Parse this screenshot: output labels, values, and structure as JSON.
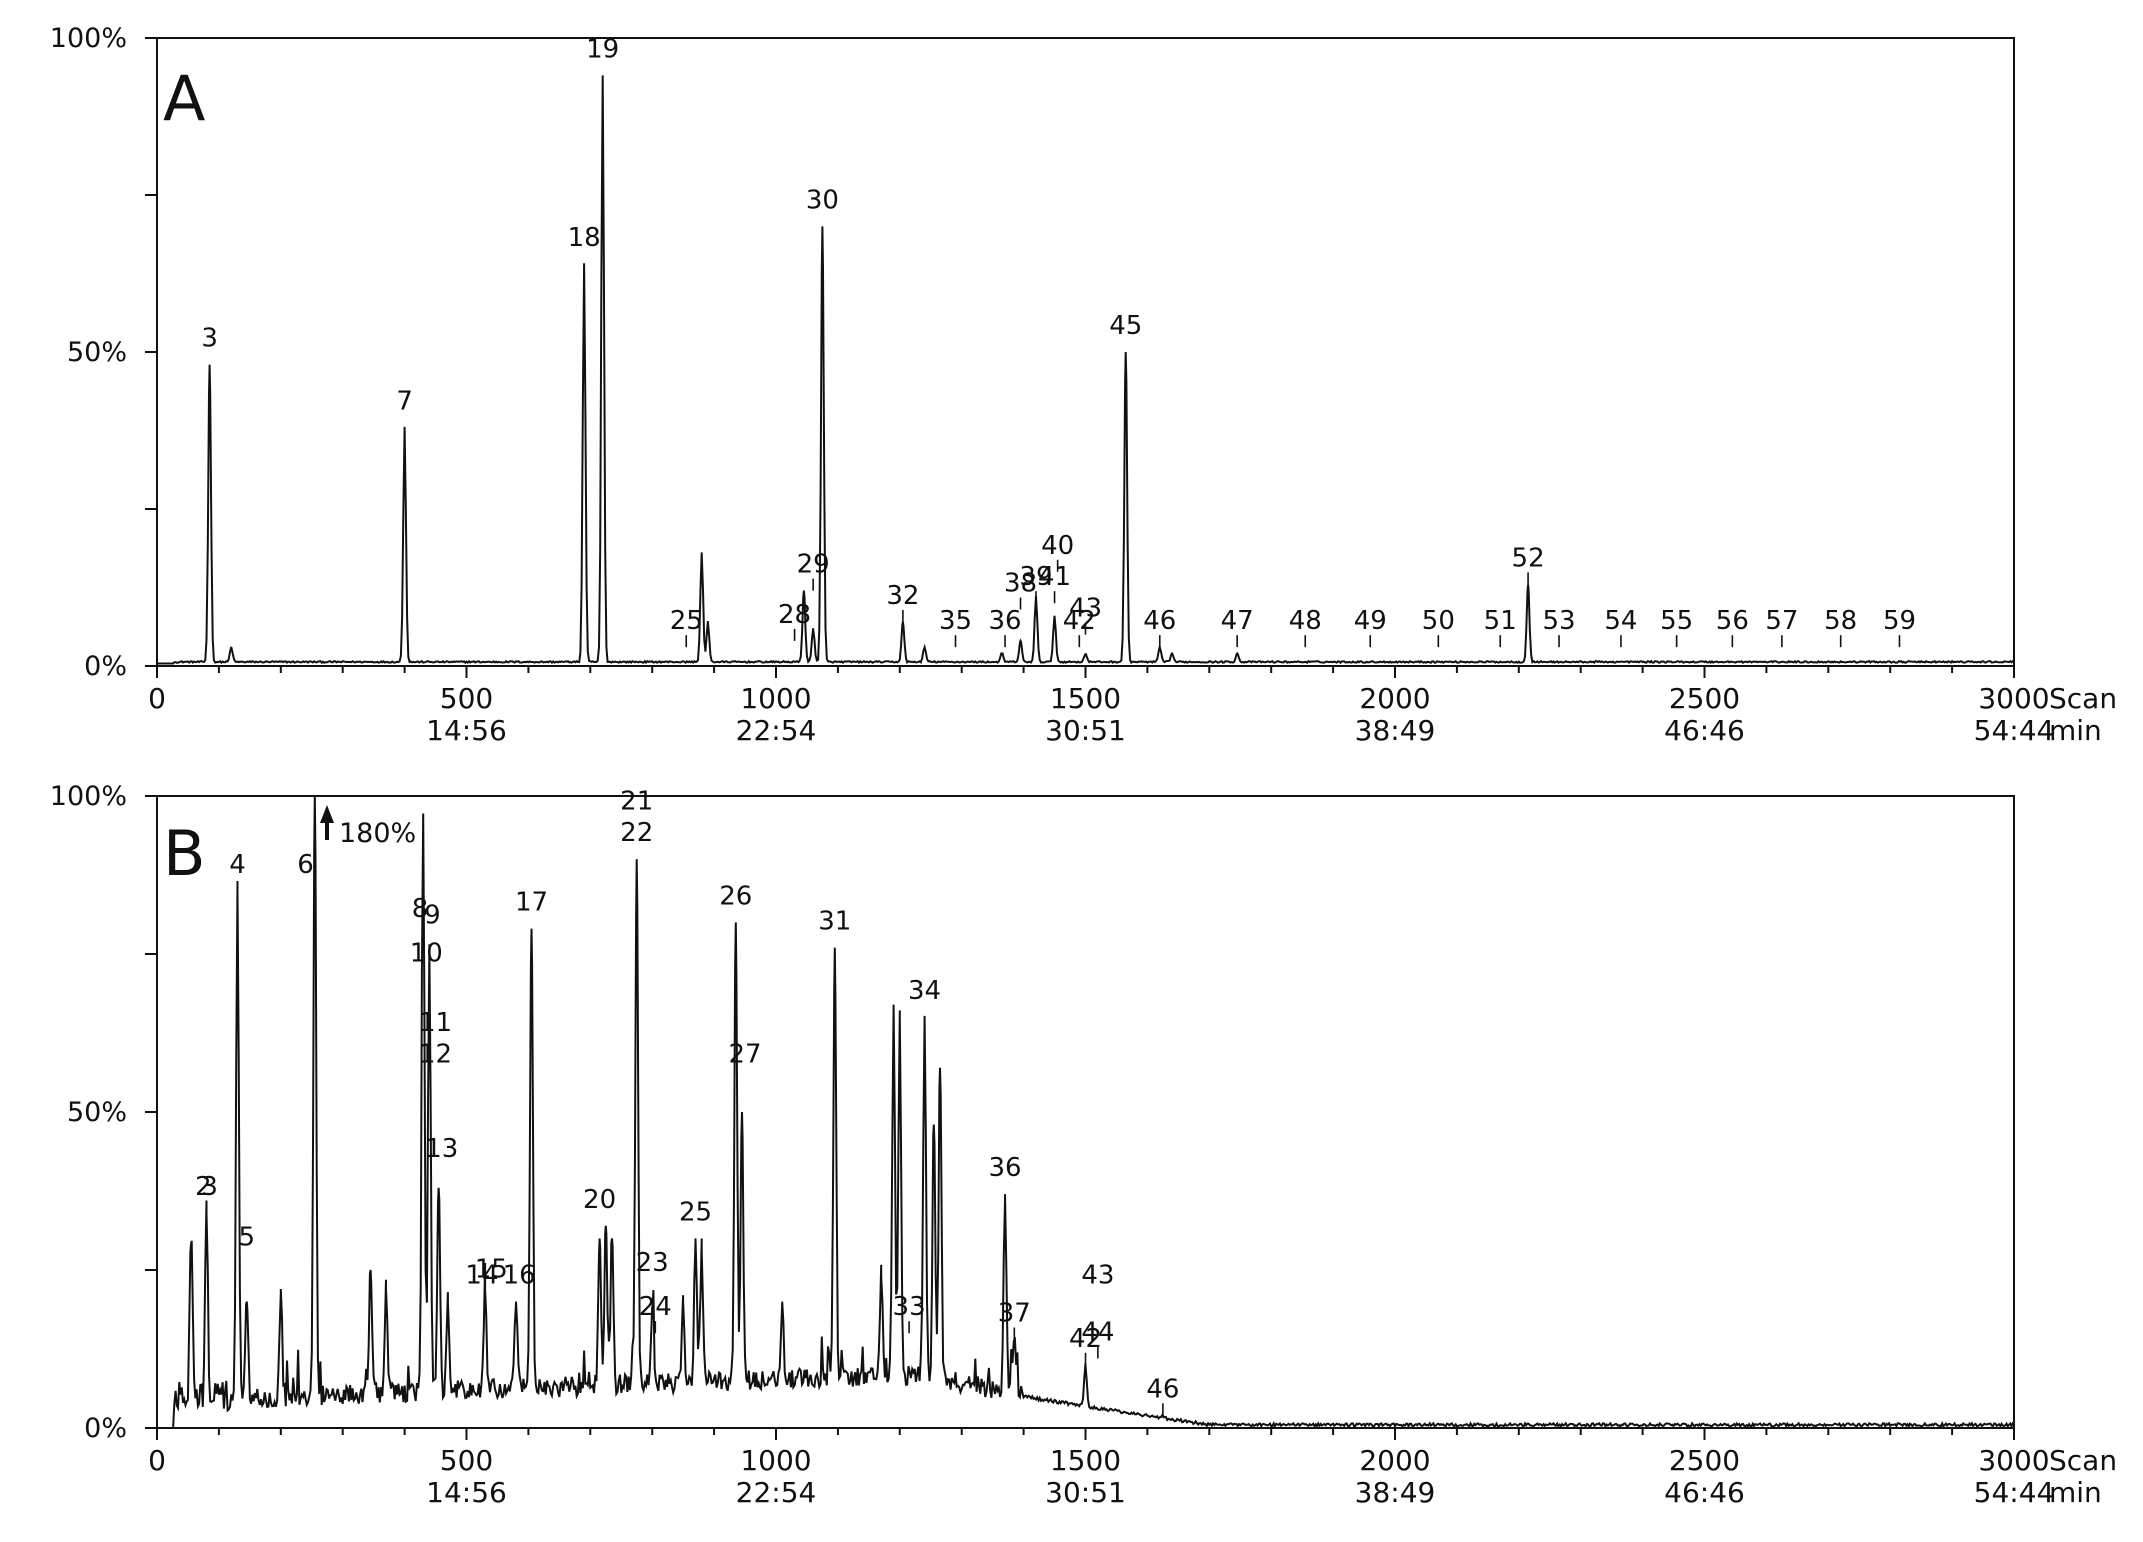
{
  "chart_data": [
    {
      "type": "line",
      "panel": "A",
      "x_unit": "Scan",
      "x2_unit": "min",
      "xlim": [
        0,
        3000
      ],
      "ylim": [
        0,
        100
      ],
      "x_ticks": [
        {
          "value": 0,
          "label": "0",
          "sub": ""
        },
        {
          "value": 500,
          "label": "500",
          "sub": "14:56"
        },
        {
          "value": 1000,
          "label": "1000",
          "sub": "22:54"
        },
        {
          "value": 1500,
          "label": "1500",
          "sub": "30:51"
        },
        {
          "value": 2000,
          "label": "2000",
          "sub": "38:49"
        },
        {
          "value": 2500,
          "label": "2500",
          "sub": "46:46"
        },
        {
          "value": 3000,
          "label": "3000",
          "sub": "54:44"
        }
      ],
      "y_ticks": [
        {
          "value": 0,
          "label": "0%"
        },
        {
          "value": 50,
          "label": "50%"
        },
        {
          "value": 100,
          "label": "100%"
        }
      ],
      "peaks": [
        {
          "x": 85,
          "y": 48
        },
        {
          "x": 120,
          "y": 3
        },
        {
          "x": 400,
          "y": 38
        },
        {
          "x": 690,
          "y": 64
        },
        {
          "x": 720,
          "y": 94
        },
        {
          "x": 880,
          "y": 18
        },
        {
          "x": 890,
          "y": 7
        },
        {
          "x": 1045,
          "y": 12
        },
        {
          "x": 1060,
          "y": 6
        },
        {
          "x": 1075,
          "y": 70
        },
        {
          "x": 1205,
          "y": 7
        },
        {
          "x": 1240,
          "y": 3
        },
        {
          "x": 1365,
          "y": 2
        },
        {
          "x": 1395,
          "y": 4
        },
        {
          "x": 1420,
          "y": 11
        },
        {
          "x": 1450,
          "y": 8
        },
        {
          "x": 1500,
          "y": 2
        },
        {
          "x": 1565,
          "y": 50
        },
        {
          "x": 1620,
          "y": 3
        },
        {
          "x": 1640,
          "y": 2
        },
        {
          "x": 1745,
          "y": 2
        },
        {
          "x": 2215,
          "y": 13
        }
      ],
      "labels": [
        {
          "text": "3",
          "x": 85,
          "y": 48
        },
        {
          "text": "7",
          "x": 400,
          "y": 38
        },
        {
          "text": "18",
          "x": 690,
          "y": 64
        },
        {
          "text": "19",
          "x": 720,
          "y": 94
        },
        {
          "text": "25",
          "x": 855,
          "y": 3
        },
        {
          "text": "28",
          "x": 1030,
          "y": 4
        },
        {
          "text": "29",
          "x": 1060,
          "y": 12
        },
        {
          "text": "30",
          "x": 1075,
          "y": 70
        },
        {
          "text": "32",
          "x": 1205,
          "y": 7
        },
        {
          "text": "35",
          "x": 1290,
          "y": 3
        },
        {
          "text": "36",
          "x": 1370,
          "y": 3
        },
        {
          "text": "38",
          "x": 1395,
          "y": 9
        },
        {
          "text": "39",
          "x": 1420,
          "y": 10
        },
        {
          "text": "40",
          "x": 1455,
          "y": 15
        },
        {
          "text": "41",
          "x": 1450,
          "y": 10
        },
        {
          "text": "42",
          "x": 1490,
          "y": 3
        },
        {
          "text": "43",
          "x": 1500,
          "y": 5
        },
        {
          "text": "45",
          "x": 1565,
          "y": 50
        },
        {
          "text": "46",
          "x": 1620,
          "y": 3
        },
        {
          "text": "47",
          "x": 1745,
          "y": 3
        },
        {
          "text": "48",
          "x": 1855,
          "y": 3
        },
        {
          "text": "49",
          "x": 1960,
          "y": 3
        },
        {
          "text": "50",
          "x": 2070,
          "y": 3
        },
        {
          "text": "51",
          "x": 2170,
          "y": 3
        },
        {
          "text": "52",
          "x": 2215,
          "y": 13
        },
        {
          "text": "53",
          "x": 2265,
          "y": 3
        },
        {
          "text": "54",
          "x": 2365,
          "y": 3
        },
        {
          "text": "55",
          "x": 2455,
          "y": 3
        },
        {
          "text": "56",
          "x": 2545,
          "y": 3
        },
        {
          "text": "57",
          "x": 2625,
          "y": 3
        },
        {
          "text": "58",
          "x": 2720,
          "y": 3
        },
        {
          "text": "59",
          "x": 2815,
          "y": 3
        }
      ]
    },
    {
      "type": "line",
      "panel": "B",
      "x_unit": "Scan",
      "x2_unit": "min",
      "xlim": [
        0,
        3000
      ],
      "ylim": [
        0,
        100
      ],
      "x_ticks": [
        {
          "value": 0,
          "label": "0",
          "sub": ""
        },
        {
          "value": 500,
          "label": "500",
          "sub": "14:56"
        },
        {
          "value": 1000,
          "label": "1000",
          "sub": "22:54"
        },
        {
          "value": 1500,
          "label": "1500",
          "sub": "30:51"
        },
        {
          "value": 2000,
          "label": "2000",
          "sub": "38:49"
        },
        {
          "value": 2500,
          "label": "2500",
          "sub": "46:46"
        },
        {
          "value": 3000,
          "label": "3000",
          "sub": "54:44"
        }
      ],
      "y_ticks": [
        {
          "value": 0,
          "label": "0%"
        },
        {
          "value": 50,
          "label": "50%"
        },
        {
          "value": 100,
          "label": "100%"
        }
      ],
      "off_scale_note": "180%",
      "peaks": [
        {
          "x": 55,
          "y": 29
        },
        {
          "x": 80,
          "y": 34
        },
        {
          "x": 130,
          "y": 85
        },
        {
          "x": 145,
          "y": 20
        },
        {
          "x": 200,
          "y": 22
        },
        {
          "x": 255,
          "y": 100
        },
        {
          "x": 345,
          "y": 25
        },
        {
          "x": 370,
          "y": 22
        },
        {
          "x": 430,
          "y": 97
        },
        {
          "x": 440,
          "y": 75
        },
        {
          "x": 455,
          "y": 38
        },
        {
          "x": 470,
          "y": 20
        },
        {
          "x": 530,
          "y": 22
        },
        {
          "x": 580,
          "y": 20
        },
        {
          "x": 605,
          "y": 79
        },
        {
          "x": 715,
          "y": 30
        },
        {
          "x": 725,
          "y": 32
        },
        {
          "x": 735,
          "y": 30
        },
        {
          "x": 775,
          "y": 90
        },
        {
          "x": 800,
          "y": 18
        },
        {
          "x": 850,
          "y": 20
        },
        {
          "x": 870,
          "y": 30
        },
        {
          "x": 880,
          "y": 28
        },
        {
          "x": 935,
          "y": 80
        },
        {
          "x": 945,
          "y": 50
        },
        {
          "x": 1010,
          "y": 20
        },
        {
          "x": 1095,
          "y": 76
        },
        {
          "x": 1170,
          "y": 24
        },
        {
          "x": 1190,
          "y": 67
        },
        {
          "x": 1200,
          "y": 65
        },
        {
          "x": 1240,
          "y": 65
        },
        {
          "x": 1255,
          "y": 48
        },
        {
          "x": 1265,
          "y": 57
        },
        {
          "x": 1370,
          "y": 37
        },
        {
          "x": 1385,
          "y": 14
        },
        {
          "x": 1500,
          "y": 10
        },
        {
          "x": 1625,
          "y": 2
        }
      ],
      "labels": [
        {
          "text": "2",
          "x": 75,
          "y": 34
        },
        {
          "text": "3",
          "x": 85,
          "y": 34
        },
        {
          "text": "4",
          "x": 130,
          "y": 85
        },
        {
          "text": "5",
          "x": 145,
          "y": 26
        },
        {
          "text": "6",
          "x": 240,
          "y": 85
        },
        {
          "text": "8",
          "x": 425,
          "y": 78
        },
        {
          "text": "9",
          "x": 445,
          "y": 77
        },
        {
          "text": "10",
          "x": 435,
          "y": 71
        },
        {
          "text": "11",
          "x": 450,
          "y": 60
        },
        {
          "text": "12",
          "x": 450,
          "y": 55
        },
        {
          "text": "13",
          "x": 460,
          "y": 40
        },
        {
          "text": "14",
          "x": 525,
          "y": 20
        },
        {
          "text": "15",
          "x": 540,
          "y": 21
        },
        {
          "text": "16",
          "x": 585,
          "y": 20
        },
        {
          "text": "17",
          "x": 605,
          "y": 79
        },
        {
          "text": "20",
          "x": 715,
          "y": 32
        },
        {
          "text": "21",
          "x": 775,
          "y": 95
        },
        {
          "text": "22",
          "x": 775,
          "y": 90
        },
        {
          "text": "23",
          "x": 800,
          "y": 22
        },
        {
          "text": "24",
          "x": 805,
          "y": 15
        },
        {
          "text": "25",
          "x": 870,
          "y": 30
        },
        {
          "text": "26",
          "x": 935,
          "y": 80
        },
        {
          "text": "27",
          "x": 950,
          "y": 55
        },
        {
          "text": "31",
          "x": 1095,
          "y": 76
        },
        {
          "text": "33",
          "x": 1215,
          "y": 15
        },
        {
          "text": "34",
          "x": 1240,
          "y": 65
        },
        {
          "text": "36",
          "x": 1370,
          "y": 37
        },
        {
          "text": "37",
          "x": 1385,
          "y": 14
        },
        {
          "text": "42",
          "x": 1500,
          "y": 10
        },
        {
          "text": "43",
          "x": 1520,
          "y": 20
        },
        {
          "text": "44",
          "x": 1520,
          "y": 11
        },
        {
          "text": "46",
          "x": 1625,
          "y": 2
        }
      ]
    }
  ],
  "panels": {
    "A": {
      "letter": "A"
    },
    "B": {
      "letter": "B"
    }
  }
}
